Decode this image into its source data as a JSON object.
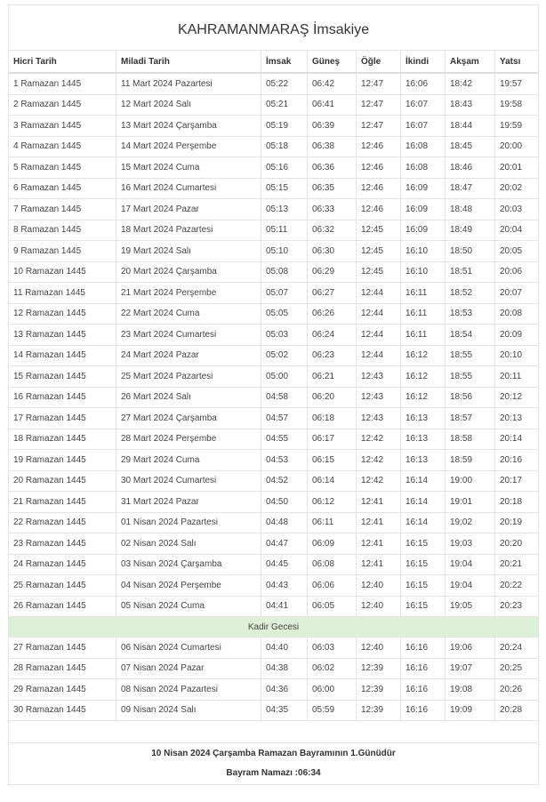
{
  "title": "KAHRAMANMARAŞ İmsakiye",
  "headers": [
    "Hicri Tarih",
    "Miladi Tarih",
    "İmsak",
    "Güneş",
    "Öğle",
    "İkindi",
    "Akşam",
    "Yatsı"
  ],
  "rows": [
    [
      "1 Ramazan 1445",
      "11 Mart 2024 Pazartesi",
      "05:22",
      "06:42",
      "12:47",
      "16:06",
      "18:42",
      "19:57"
    ],
    [
      "2 Ramazan 1445",
      "12 Mart 2024 Salı",
      "05:21",
      "06:41",
      "12:47",
      "16:07",
      "18:43",
      "19:58"
    ],
    [
      "3 Ramazan 1445",
      "13 Mart 2024 Çarşamba",
      "05:19",
      "06:39",
      "12:47",
      "16:07",
      "18:44",
      "19:59"
    ],
    [
      "4 Ramazan 1445",
      "14 Mart 2024 Perşembe",
      "05:18",
      "06:38",
      "12:46",
      "16:08",
      "18:45",
      "20:00"
    ],
    [
      "5 Ramazan 1445",
      "15 Mart 2024 Cuma",
      "05:16",
      "06:36",
      "12:46",
      "16:08",
      "18:46",
      "20:01"
    ],
    [
      "6 Ramazan 1445",
      "16 Mart 2024 Cumartesi",
      "05:15",
      "06:35",
      "12:46",
      "16:09",
      "18:47",
      "20:02"
    ],
    [
      "7 Ramazan 1445",
      "17 Mart 2024 Pazar",
      "05:13",
      "06:33",
      "12:46",
      "16:09",
      "18:48",
      "20:03"
    ],
    [
      "8 Ramazan 1445",
      "18 Mart 2024 Pazartesi",
      "05:11",
      "06:32",
      "12:45",
      "16:09",
      "18:49",
      "20:04"
    ],
    [
      "9 Ramazan 1445",
      "19 Mart 2024 Salı",
      "05:10",
      "06:30",
      "12:45",
      "16:10",
      "18:50",
      "20:05"
    ],
    [
      "10 Ramazan 1445",
      "20 Mart 2024 Çarşamba",
      "05:08",
      "06:29",
      "12:45",
      "16:10",
      "18:51",
      "20:06"
    ],
    [
      "11 Ramazan 1445",
      "21 Mart 2024 Perşembe",
      "05:07",
      "06:27",
      "12:44",
      "16:11",
      "18:52",
      "20:07"
    ],
    [
      "12 Ramazan 1445",
      "22 Mart 2024 Cuma",
      "05:05",
      "06:26",
      "12:44",
      "16:11",
      "18:53",
      "20:08"
    ],
    [
      "13 Ramazan 1445",
      "23 Mart 2024 Cumartesi",
      "05:03",
      "06:24",
      "12:44",
      "16:11",
      "18:54",
      "20:09"
    ],
    [
      "14 Ramazan 1445",
      "24 Mart 2024 Pazar",
      "05:02",
      "06:23",
      "12:44",
      "16:12",
      "18:55",
      "20:10"
    ],
    [
      "15 Ramazan 1445",
      "25 Mart 2024 Pazartesi",
      "05:00",
      "06:21",
      "12:43",
      "16:12",
      "18:55",
      "20:11"
    ],
    [
      "16 Ramazan 1445",
      "26 Mart 2024 Salı",
      "04:58",
      "06:20",
      "12:43",
      "16:12",
      "18:56",
      "20:12"
    ],
    [
      "17 Ramazan 1445",
      "27 Mart 2024 Çarşamba",
      "04:57",
      "06:18",
      "12:43",
      "16:13",
      "18:57",
      "20:13"
    ],
    [
      "18 Ramazan 1445",
      "28 Mart 2024 Perşembe",
      "04:55",
      "06:17",
      "12:42",
      "16:13",
      "18:58",
      "20:14"
    ],
    [
      "19 Ramazan 1445",
      "29 Mart 2024 Cuma",
      "04:53",
      "06:15",
      "12:42",
      "16:13",
      "18:59",
      "20:16"
    ],
    [
      "20 Ramazan 1445",
      "30 Mart 2024 Cumartesi",
      "04:52",
      "06:14",
      "12:42",
      "16:14",
      "19:00",
      "20:17"
    ],
    [
      "21 Ramazan 1445",
      "31 Mart 2024 Pazar",
      "04:50",
      "06:12",
      "12:41",
      "16:14",
      "19:01",
      "20:18"
    ],
    [
      "22 Ramazan 1445",
      "01 Nisan 2024 Pazartesi",
      "04:48",
      "06:11",
      "12:41",
      "16:14",
      "19:02",
      "20:19"
    ],
    [
      "23 Ramazan 1445",
      "02 Nisan 2024 Salı",
      "04:47",
      "06:09",
      "12:41",
      "16:15",
      "19:03",
      "20:20"
    ],
    [
      "24 Ramazan 1445",
      "03 Nisan 2024 Çarşamba",
      "04:45",
      "06:08",
      "12:41",
      "16:15",
      "19:04",
      "20:21"
    ],
    [
      "25 Ramazan 1445",
      "04 Nisan 2024 Perşembe",
      "04:43",
      "06:06",
      "12:40",
      "16:15",
      "19:04",
      "20:22"
    ],
    [
      "26 Ramazan 1445",
      "05 Nisan 2024 Cuma",
      "04:41",
      "06:05",
      "12:40",
      "16:15",
      "19:05",
      "20:23"
    ]
  ],
  "kadir_label": "Kadir Gecesi",
  "rows_after": [
    [
      "27 Ramazan 1445",
      "06 Nisan 2024 Cumartesi",
      "04:40",
      "06:03",
      "12:40",
      "16:16",
      "19:06",
      "20:24"
    ],
    [
      "28 Ramazan 1445",
      "07 Nisan 2024 Pazar",
      "04:38",
      "06:02",
      "12:39",
      "16:16",
      "19:07",
      "20:25"
    ],
    [
      "29 Ramazan 1445",
      "08 Nisan 2024 Pazartesi",
      "04:36",
      "06:00",
      "12:39",
      "16:16",
      "19:08",
      "20:26"
    ],
    [
      "30 Ramazan 1445",
      "09 Nisan 2024 Salı",
      "04:35",
      "05:59",
      "12:39",
      "16:16",
      "19:09",
      "20:28"
    ]
  ],
  "footer": {
    "bayram_line": "10 Nisan 2024 Çarşamba Ramazan Bayramının 1.Günüdür",
    "namaz_line": "Bayram Namazı :06:34"
  },
  "colors": {
    "kadir_bg": "#dff0d8",
    "border": "#e4e4e4"
  }
}
